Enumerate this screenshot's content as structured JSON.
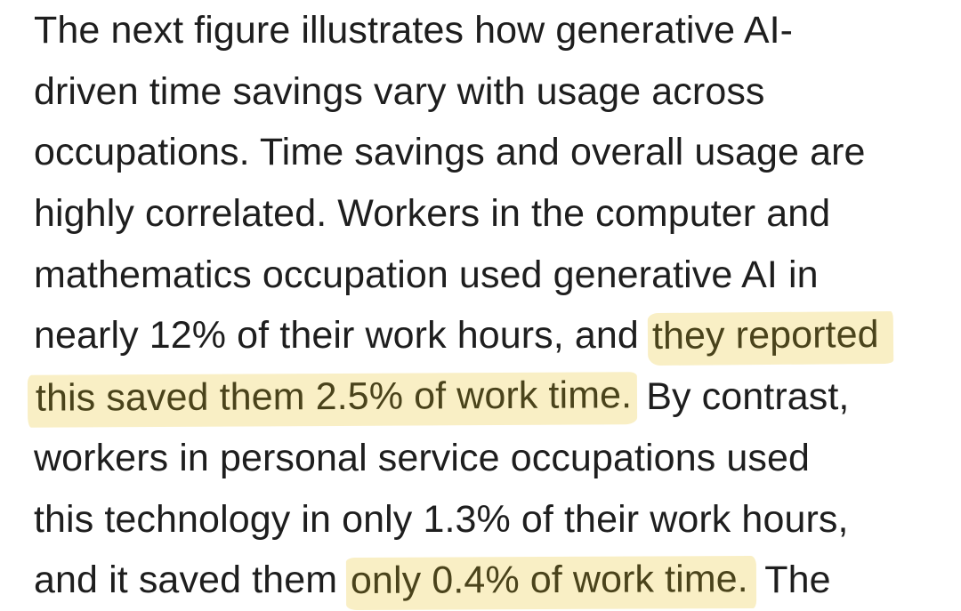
{
  "page": {
    "background_color": "#ffffff",
    "text_color": "#1e1e1e",
    "highlight_background_color": "#f9efc5",
    "highlight_text_color": "#4a431b"
  },
  "text_block": {
    "lines": [
      {
        "segments": [
          {
            "text": "The next figure illustrates how generative AI-",
            "highlight": false
          }
        ]
      },
      {
        "segments": [
          {
            "text": "driven time savings vary with usage across",
            "highlight": false
          }
        ]
      },
      {
        "segments": [
          {
            "text": "occupations. Time savings and overall usage are",
            "highlight": false
          }
        ]
      },
      {
        "segments": [
          {
            "text": "highly correlated. Workers in the computer and",
            "highlight": false
          }
        ]
      },
      {
        "segments": [
          {
            "text": "mathematics occupation used generative AI in",
            "highlight": false
          }
        ]
      },
      {
        "segments": [
          {
            "text": "nearly 12% of their work hours, and ",
            "highlight": false
          },
          {
            "text": "they reported",
            "highlight": true
          }
        ]
      },
      {
        "segments": [
          {
            "text": "this saved them 2.5% of work time.",
            "highlight": true
          },
          {
            "text": " By contrast,",
            "highlight": false
          }
        ]
      },
      {
        "segments": [
          {
            "text": "workers in personal service occupations used",
            "highlight": false
          }
        ]
      },
      {
        "segments": [
          {
            "text": "this technology in only 1.3% of their work hours,",
            "highlight": false
          }
        ]
      },
      {
        "segments": [
          {
            "text": "and it saved them ",
            "highlight": false
          },
          {
            "text": "only 0.4% of work time.",
            "highlight": true
          },
          {
            "text": " The",
            "highlight": false
          }
        ]
      }
    ]
  }
}
